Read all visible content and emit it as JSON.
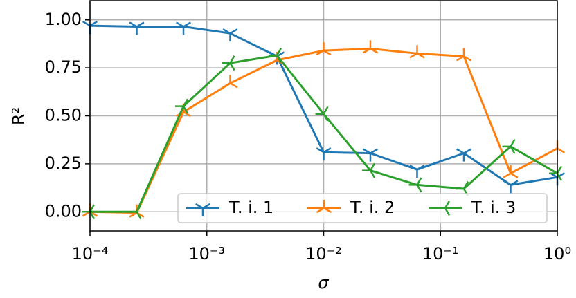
{
  "chart_data": {
    "type": "line",
    "xlabel": "σ",
    "ylabel": "R²",
    "x": [
      0.0001,
      0.0002512,
      0.000631,
      0.001585,
      0.003981,
      0.01,
      0.02512,
      0.0631,
      0.1585,
      0.3981,
      1
    ],
    "series": [
      {
        "name": "T. i. 1",
        "color": "#1f77b4",
        "marker": "tri_down",
        "values": [
          0.97,
          0.965,
          0.965,
          0.93,
          0.81,
          0.31,
          0.305,
          0.22,
          0.305,
          0.14,
          0.18
        ]
      },
      {
        "name": "T. i. 2",
        "color": "#ff7f0e",
        "marker": "tri_up",
        "values": [
          0.0,
          -0.005,
          0.52,
          0.67,
          0.79,
          0.84,
          0.85,
          0.825,
          0.81,
          0.2,
          0.33
        ]
      },
      {
        "name": "T. i. 3",
        "color": "#2ca02c",
        "marker": "tri_left",
        "values": [
          0.0,
          0.0,
          0.55,
          0.775,
          0.815,
          0.51,
          0.215,
          0.14,
          0.12,
          0.34,
          0.2
        ]
      }
    ],
    "xscale": "log",
    "xlim": [
      0.0001,
      1
    ],
    "xticks": [
      {
        "value": 0.0001,
        "label": "10⁻⁴"
      },
      {
        "value": 0.001,
        "label": "10⁻³"
      },
      {
        "value": 0.01,
        "label": "10⁻²"
      },
      {
        "value": 0.1,
        "label": "10⁻¹"
      },
      {
        "value": 1,
        "label": "10⁰"
      }
    ],
    "ylim": [
      -0.1,
      1.1
    ],
    "yticks": [
      {
        "value": 0,
        "label": "0.00"
      },
      {
        "value": 0.25,
        "label": "0.25"
      },
      {
        "value": 0.5,
        "label": "0.50"
      },
      {
        "value": 0.75,
        "label": "0.75"
      },
      {
        "value": 1,
        "label": "1.00"
      }
    ],
    "grid": true,
    "legend": "lower right"
  }
}
